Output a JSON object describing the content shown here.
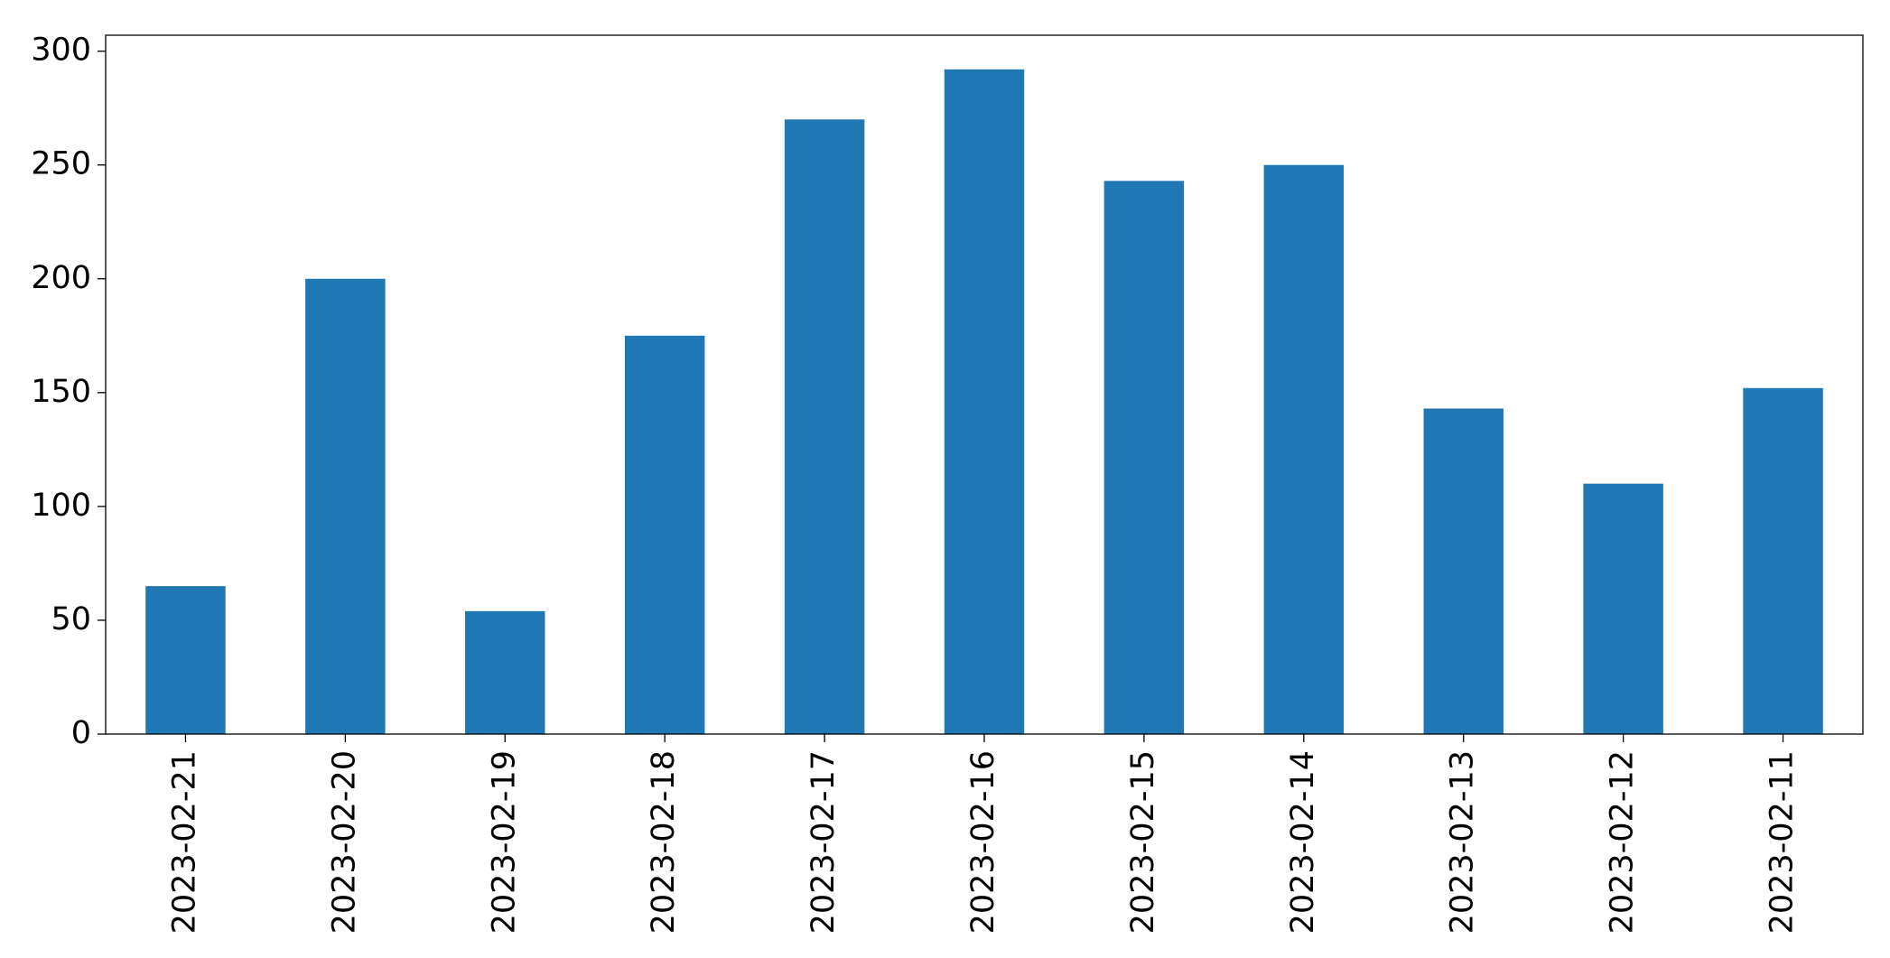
{
  "chart_data": {
    "type": "bar",
    "categories": [
      "2023-02-21",
      "2023-02-20",
      "2023-02-19",
      "2023-02-18",
      "2023-02-17",
      "2023-02-16",
      "2023-02-15",
      "2023-02-14",
      "2023-02-13",
      "2023-02-12",
      "2023-02-11"
    ],
    "values": [
      65,
      200,
      54,
      175,
      270,
      292,
      243,
      250,
      143,
      110,
      152
    ],
    "color": "#1f77b4",
    "ylim": [
      0,
      307
    ],
    "yticks": [
      0,
      50,
      100,
      150,
      200,
      250,
      300
    ],
    "grid": false
  }
}
